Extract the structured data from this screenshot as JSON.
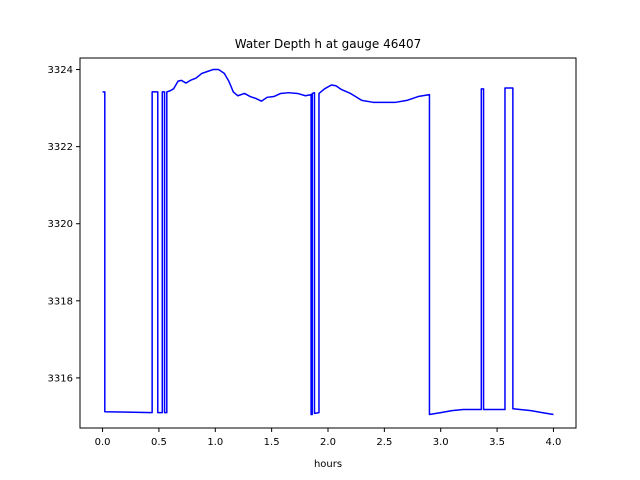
{
  "chart_data": {
    "type": "line",
    "title": "Water Depth h at gauge 46407",
    "xlabel": "hours",
    "ylabel": "",
    "xlim": [
      -0.2,
      4.2
    ],
    "ylim": [
      3314.7,
      3324.3
    ],
    "xticks": [
      0.0,
      0.5,
      1.0,
      1.5,
      2.0,
      2.5,
      3.0,
      3.5,
      4.0
    ],
    "xtick_labels": [
      "0.0",
      "0.5",
      "1.0",
      "1.5",
      "2.0",
      "2.5",
      "3.0",
      "3.5",
      "4.0"
    ],
    "yticks": [
      3316,
      3318,
      3320,
      3322,
      3324
    ],
    "ytick_labels": [
      "3316",
      "3318",
      "3320",
      "3322",
      "3324"
    ],
    "grid": false,
    "series": [
      {
        "color": "#0000ff",
        "points": [
          [
            0.0,
            3323.42
          ],
          [
            0.02,
            3323.42
          ],
          [
            0.02,
            3315.12
          ],
          [
            0.44,
            3315.1
          ],
          [
            0.44,
            3323.42
          ],
          [
            0.49,
            3323.42
          ],
          [
            0.49,
            3315.1
          ],
          [
            0.53,
            3315.1
          ],
          [
            0.53,
            3323.42
          ],
          [
            0.55,
            3323.42
          ],
          [
            0.55,
            3315.1
          ],
          [
            0.57,
            3315.1
          ],
          [
            0.57,
            3323.42
          ],
          [
            0.6,
            3323.45
          ],
          [
            0.63,
            3323.5
          ],
          [
            0.67,
            3323.7
          ],
          [
            0.7,
            3323.72
          ],
          [
            0.74,
            3323.65
          ],
          [
            0.78,
            3323.72
          ],
          [
            0.83,
            3323.78
          ],
          [
            0.88,
            3323.9
          ],
          [
            0.93,
            3323.95
          ],
          [
            0.98,
            3324.0
          ],
          [
            1.03,
            3324.0
          ],
          [
            1.08,
            3323.9
          ],
          [
            1.12,
            3323.7
          ],
          [
            1.16,
            3323.42
          ],
          [
            1.2,
            3323.32
          ],
          [
            1.26,
            3323.38
          ],
          [
            1.31,
            3323.3
          ],
          [
            1.36,
            3323.25
          ],
          [
            1.41,
            3323.18
          ],
          [
            1.46,
            3323.28
          ],
          [
            1.52,
            3323.3
          ],
          [
            1.58,
            3323.38
          ],
          [
            1.65,
            3323.4
          ],
          [
            1.73,
            3323.38
          ],
          [
            1.8,
            3323.32
          ],
          [
            1.85,
            3323.35
          ],
          [
            1.85,
            3315.05
          ],
          [
            1.86,
            3315.05
          ],
          [
            1.86,
            3323.38
          ],
          [
            1.88,
            3323.4
          ],
          [
            1.88,
            3315.08
          ],
          [
            1.92,
            3315.1
          ],
          [
            1.92,
            3323.38
          ],
          [
            1.97,
            3323.5
          ],
          [
            2.03,
            3323.6
          ],
          [
            2.07,
            3323.58
          ],
          [
            2.12,
            3323.48
          ],
          [
            2.2,
            3323.38
          ],
          [
            2.3,
            3323.2
          ],
          [
            2.4,
            3323.15
          ],
          [
            2.5,
            3323.15
          ],
          [
            2.6,
            3323.15
          ],
          [
            2.7,
            3323.2
          ],
          [
            2.8,
            3323.3
          ],
          [
            2.9,
            3323.35
          ],
          [
            2.9,
            3315.05
          ],
          [
            3.0,
            3315.1
          ],
          [
            3.1,
            3315.15
          ],
          [
            3.2,
            3315.18
          ],
          [
            3.36,
            3315.18
          ],
          [
            3.36,
            3323.5
          ],
          [
            3.38,
            3323.5
          ],
          [
            3.38,
            3315.18
          ],
          [
            3.57,
            3315.18
          ],
          [
            3.57,
            3323.52
          ],
          [
            3.64,
            3323.52
          ],
          [
            3.64,
            3315.2
          ],
          [
            3.8,
            3315.15
          ],
          [
            3.9,
            3315.1
          ],
          [
            4.0,
            3315.05
          ]
        ]
      }
    ]
  }
}
